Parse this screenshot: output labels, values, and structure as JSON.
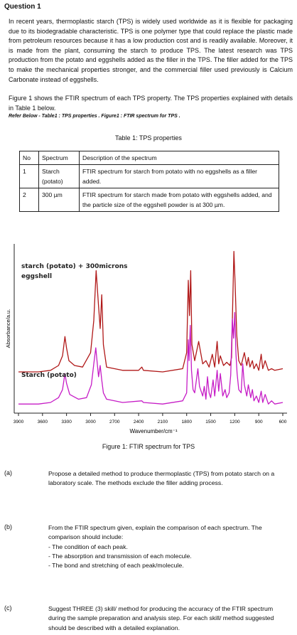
{
  "heading": "Question 1",
  "intro": [
    "In recent years, thermoplastic starch (TPS) is widely used worldwide as it is flexible for packaging due to its biodegradable characteristic. TPS is one polymer type that could replace the plastic made from petroleum resources because it has a low production cost and is readily available. Moreover, it is made from the plant, consuming the starch to produce TPS. The latest research was TPS production from the potato and eggshells added as the filler in the TPS. The filler added for the TPS to make the mechanical properties stronger, and the commercial filler used previously is Calcium Carbonate instead of eggshells.",
    "Figure 1 shows the FTIR spectrum of each TPS property. The TPS properties explained with details in Table 1 below."
  ],
  "reference_note": "Refer Below - Table1 : TPS properties . Figure1 : FTIR spectrum for TPS .",
  "table": {
    "caption": "Table 1: TPS properties",
    "headers": [
      "No",
      "Spectrum",
      "Description of the spectrum"
    ],
    "rows": [
      {
        "no": "1",
        "spectrum": "Starch (potato)",
        "description": "FTIR spectrum for starch from potato with no eggshells as a filler added."
      },
      {
        "no": "2",
        "spectrum": "300 µm",
        "description": "FTIR spectrum for starch made from potato with eggshells added, and the particle size of the eggshell powder is at 300 µm."
      }
    ]
  },
  "chart_data": {
    "type": "line",
    "title": "",
    "xlabel": "Wavenumber/cm⁻¹",
    "ylabel": "Absorbance/a.u.",
    "x_ticks": [
      "3900",
      "3600",
      "3300",
      "3000",
      "2700",
      "2400",
      "2100",
      "1800",
      "1500",
      "1200",
      "900",
      "600"
    ],
    "xlim": [
      3900,
      600
    ],
    "x_reversed": true,
    "y_ticks": [],
    "grid": false,
    "series": [
      {
        "name": "starch (potato) + 300microns eggshell",
        "color": "#b01818",
        "baseline": 0.23,
        "points": [
          [
            3900,
            0.23
          ],
          [
            3650,
            0.23
          ],
          [
            3500,
            0.24
          ],
          [
            3400,
            0.27
          ],
          [
            3350,
            0.33
          ],
          [
            3320,
            0.45
          ],
          [
            3300,
            0.38
          ],
          [
            3270,
            0.3
          ],
          [
            3200,
            0.27
          ],
          [
            3100,
            0.26
          ],
          [
            3000,
            0.35
          ],
          [
            2960,
            0.55
          ],
          [
            2930,
            0.86
          ],
          [
            2900,
            0.64
          ],
          [
            2880,
            0.5
          ],
          [
            2860,
            0.71
          ],
          [
            2840,
            0.4
          ],
          [
            2800,
            0.26
          ],
          [
            2600,
            0.24
          ],
          [
            2400,
            0.24
          ],
          [
            2360,
            0.26
          ],
          [
            2340,
            0.24
          ],
          [
            2100,
            0.23
          ],
          [
            1850,
            0.25
          ],
          [
            1800,
            0.35
          ],
          [
            1780,
            0.8
          ],
          [
            1765,
            0.58
          ],
          [
            1750,
            0.86
          ],
          [
            1735,
            0.4
          ],
          [
            1700,
            0.3
          ],
          [
            1650,
            0.42
          ],
          [
            1600,
            0.28
          ],
          [
            1560,
            0.3
          ],
          [
            1520,
            0.26
          ],
          [
            1480,
            0.34
          ],
          [
            1450,
            0.26
          ],
          [
            1420,
            0.42
          ],
          [
            1400,
            0.28
          ],
          [
            1380,
            0.33
          ],
          [
            1340,
            0.27
          ],
          [
            1300,
            0.29
          ],
          [
            1260,
            0.27
          ],
          [
            1240,
            0.32
          ],
          [
            1225,
            0.65
          ],
          [
            1210,
            0.98
          ],
          [
            1195,
            0.78
          ],
          [
            1175,
            0.46
          ],
          [
            1150,
            0.3
          ],
          [
            1120,
            0.27
          ],
          [
            1080,
            0.35
          ],
          [
            1050,
            0.27
          ],
          [
            1030,
            0.32
          ],
          [
            1010,
            0.26
          ],
          [
            980,
            0.3
          ],
          [
            960,
            0.25
          ],
          [
            930,
            0.28
          ],
          [
            900,
            0.24
          ],
          [
            870,
            0.34
          ],
          [
            850,
            0.25
          ],
          [
            820,
            0.3
          ],
          [
            780,
            0.24
          ],
          [
            740,
            0.25
          ],
          [
            700,
            0.24
          ],
          [
            600,
            0.25
          ]
        ]
      },
      {
        "name": "Starch (potato)",
        "color": "#c61cc6",
        "baseline": 0.03,
        "points": [
          [
            3900,
            0.03
          ],
          [
            3650,
            0.03
          ],
          [
            3500,
            0.04
          ],
          [
            3400,
            0.07
          ],
          [
            3350,
            0.12
          ],
          [
            3320,
            0.22
          ],
          [
            3300,
            0.16
          ],
          [
            3260,
            0.09
          ],
          [
            3150,
            0.06
          ],
          [
            3050,
            0.07
          ],
          [
            2990,
            0.15
          ],
          [
            2960,
            0.28
          ],
          [
            2935,
            0.38
          ],
          [
            2920,
            0.3
          ],
          [
            2900,
            0.2
          ],
          [
            2880,
            0.27
          ],
          [
            2860,
            0.18
          ],
          [
            2840,
            0.1
          ],
          [
            2800,
            0.06
          ],
          [
            2600,
            0.04
          ],
          [
            2360,
            0.05
          ],
          [
            2340,
            0.04
          ],
          [
            2100,
            0.03
          ],
          [
            1850,
            0.05
          ],
          [
            1800,
            0.1
          ],
          [
            1780,
            0.43
          ],
          [
            1770,
            0.3
          ],
          [
            1755,
            0.52
          ],
          [
            1740,
            0.24
          ],
          [
            1720,
            0.12
          ],
          [
            1700,
            0.1
          ],
          [
            1660,
            0.25
          ],
          [
            1640,
            0.14
          ],
          [
            1600,
            0.08
          ],
          [
            1580,
            0.14
          ],
          [
            1560,
            0.06
          ],
          [
            1540,
            0.2
          ],
          [
            1520,
            0.1
          ],
          [
            1500,
            0.07
          ],
          [
            1470,
            0.18
          ],
          [
            1450,
            0.08
          ],
          [
            1420,
            0.24
          ],
          [
            1400,
            0.11
          ],
          [
            1380,
            0.22
          ],
          [
            1350,
            0.08
          ],
          [
            1320,
            0.12
          ],
          [
            1300,
            0.07
          ],
          [
            1270,
            0.1
          ],
          [
            1250,
            0.21
          ],
          [
            1230,
            0.56
          ],
          [
            1215,
            0.44
          ],
          [
            1200,
            0.6
          ],
          [
            1185,
            0.34
          ],
          [
            1170,
            0.22
          ],
          [
            1150,
            0.12
          ],
          [
            1120,
            0.1
          ],
          [
            1100,
            0.28
          ],
          [
            1080,
            0.15
          ],
          [
            1050,
            0.08
          ],
          [
            1030,
            0.15
          ],
          [
            1000,
            0.07
          ],
          [
            980,
            0.12
          ],
          [
            960,
            0.05
          ],
          [
            930,
            0.08
          ],
          [
            900,
            0.04
          ],
          [
            870,
            0.11
          ],
          [
            850,
            0.04
          ],
          [
            820,
            0.09
          ],
          [
            780,
            0.03
          ],
          [
            740,
            0.05
          ],
          [
            700,
            0.03
          ],
          [
            600,
            0.04
          ]
        ]
      }
    ]
  },
  "figure_caption": "Figure 1: FTIR spectrum for TPS",
  "questions": [
    {
      "label": "(a)",
      "lines": [
        "Propose a detailed method to produce thermoplastic (TPS) from potato starch on a laboratory scale. The methods exclude the filler adding process."
      ]
    },
    {
      "label": "(b)",
      "lines": [
        "From the FTIR spectrum given, explain the comparison of each spectrum. The comparison should include:",
        "- The condition of each peak.",
        "- The absorption and transmission of each molecule.",
        "- The bond and stretching of each peak/molecule."
      ]
    },
    {
      "label": "(c)",
      "lines": [
        "Suggest THREE (3) skill/ method for producing the accuracy of the FTIR spectrum during the sample preparation and analysis step. For each skill/ method suggested should be described with a detailed explanation."
      ]
    }
  ]
}
